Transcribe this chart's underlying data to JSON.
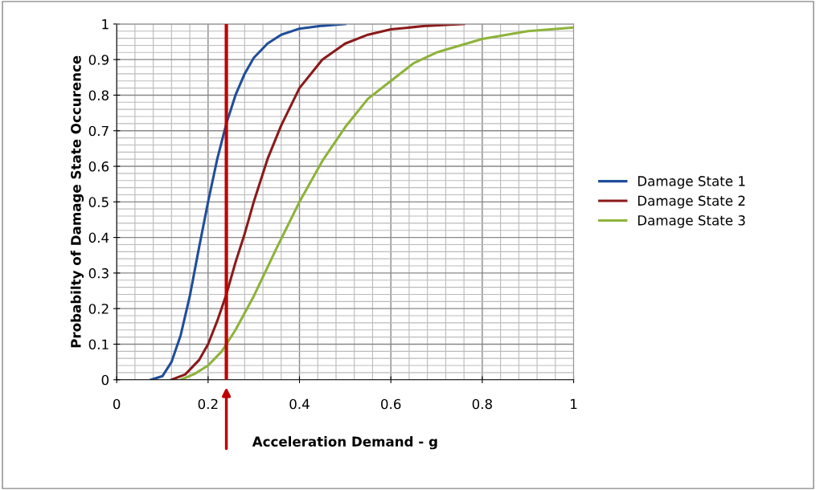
{
  "chart_data": {
    "type": "line",
    "xlabel": "Acceleration Demand - g",
    "ylabel": "Probabilty of Damage State Occurence",
    "xlim": [
      0,
      1
    ],
    "ylim": [
      0,
      1
    ],
    "xticks": [
      0,
      0.2,
      0.4,
      0.6,
      0.8,
      1
    ],
    "yticks": [
      0,
      0.1,
      0.2,
      0.3,
      0.4,
      0.5,
      0.6,
      0.7,
      0.8,
      0.9,
      1
    ],
    "grid": true,
    "legend": "right",
    "marker": "none",
    "line_style": "solid",
    "series": [
      {
        "name": "Damage State 1",
        "color": "#1f4e9a",
        "x": [
          0.075,
          0.1,
          0.12,
          0.14,
          0.16,
          0.18,
          0.2,
          0.22,
          0.24,
          0.26,
          0.28,
          0.3,
          0.33,
          0.36,
          0.4,
          0.45,
          0.5
        ],
        "values": [
          0,
          0.01,
          0.05,
          0.125,
          0.235,
          0.37,
          0.5,
          0.62,
          0.72,
          0.8,
          0.86,
          0.905,
          0.945,
          0.97,
          0.987,
          0.995,
          1
        ]
      },
      {
        "name": "Damage State 2",
        "color": "#8b1a1a",
        "x": [
          0.12,
          0.15,
          0.18,
          0.2,
          0.22,
          0.24,
          0.26,
          0.28,
          0.3,
          0.33,
          0.36,
          0.4,
          0.45,
          0.5,
          0.55,
          0.6,
          0.68,
          0.76
        ],
        "values": [
          0,
          0.015,
          0.055,
          0.1,
          0.165,
          0.24,
          0.33,
          0.41,
          0.5,
          0.62,
          0.715,
          0.82,
          0.9,
          0.945,
          0.97,
          0.985,
          0.995,
          1
        ]
      },
      {
        "name": "Damage State 3",
        "color": "#8db33a",
        "x": [
          0.14,
          0.17,
          0.2,
          0.23,
          0.26,
          0.3,
          0.35,
          0.4,
          0.45,
          0.5,
          0.55,
          0.6,
          0.65,
          0.7,
          0.8,
          0.9,
          1
        ],
        "values": [
          0,
          0.016,
          0.04,
          0.08,
          0.14,
          0.235,
          0.37,
          0.5,
          0.615,
          0.71,
          0.79,
          0.84,
          0.89,
          0.92,
          0.958,
          0.98,
          0.99
        ]
      }
    ],
    "ref_lines": [
      {
        "axis": "x",
        "value": 0.24,
        "label": null,
        "color": "#c00000",
        "line_style": "solid"
      }
    ]
  }
}
